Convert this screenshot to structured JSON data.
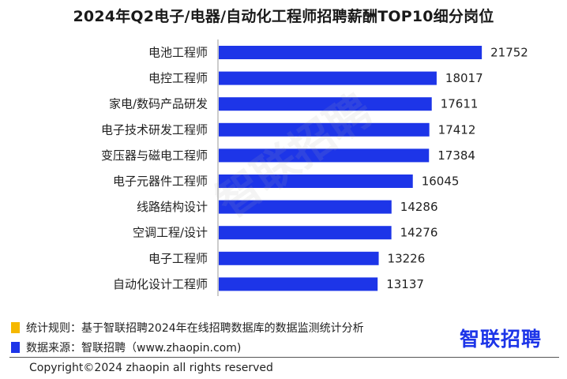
{
  "title": "2024年Q2电子/电器/自动化工程师招聘薪酬TOP10细分岗位",
  "chart_data": {
    "type": "bar",
    "orientation": "horizontal",
    "categories": [
      "电池工程师",
      "电控工程师",
      "家电/数码产品研发",
      "电子技术研发工程师",
      "变压器与磁电工程师",
      "电子元器件工程师",
      "线路结构设计",
      "空调工程/设计",
      "电子工程师",
      "自动化设计工程师"
    ],
    "values": [
      21752,
      18017,
      17611,
      17412,
      17384,
      16045,
      14286,
      14276,
      13226,
      13137
    ],
    "xlim": [
      0,
      22200
    ],
    "bar_color": "#1d35e8",
    "grid": false,
    "legend": "none"
  },
  "watermark": "智联招聘",
  "notes": {
    "rule": "统计规则：基于智联招聘2024年在线招聘数据库的数据监测统计分析",
    "rule_color": "#f5b800",
    "source": "数据来源：智联招聘（www.zhaopin.com)",
    "source_color": "#1d35e8"
  },
  "logo": {
    "text": "智联招聘"
  },
  "copyright": "Copyright©2024 zhaopin all rights reserved"
}
